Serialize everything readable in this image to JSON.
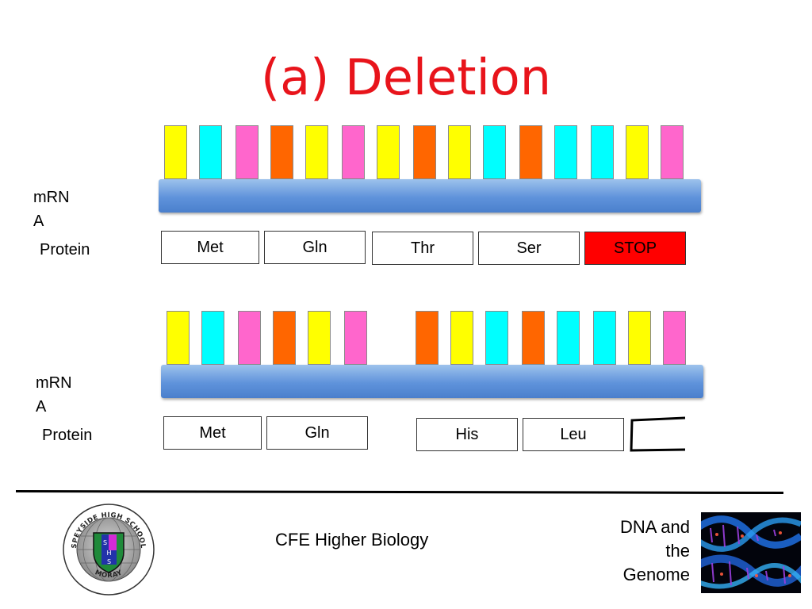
{
  "slide": {
    "title": "(a) Deletion"
  },
  "colors": {
    "yellow": "#ffff00",
    "cyan": "#00ffff",
    "pink": "#ff66cc",
    "orange": "#ff6600",
    "stop": "#ff0000",
    "title": "#e8141b"
  },
  "row1": {
    "mrna_label": "mRNA",
    "mrna_line1": "mRN",
    "mrna_line2": "A",
    "protein_label": "Protein",
    "bases": [
      "yellow",
      "cyan",
      "pink",
      "orange",
      "yellow",
      "pink",
      "yellow",
      "orange",
      "yellow",
      "cyan",
      "orange",
      "cyan",
      "cyan",
      "yellow",
      "pink"
    ],
    "amino_acids": [
      "Met",
      "Gln",
      "Thr",
      "Ser",
      "STOP"
    ]
  },
  "row2": {
    "mrna_line1": "mRN",
    "mrna_line2": "A",
    "protein_label": "Protein",
    "bases": [
      "yellow",
      "cyan",
      "pink",
      "orange",
      "yellow",
      "pink",
      "orange",
      "yellow",
      "cyan",
      "orange",
      "cyan",
      "cyan",
      "yellow",
      "pink"
    ],
    "amino_acids": [
      "Met",
      "Gln",
      "His",
      "Leu",
      ""
    ]
  },
  "footer": {
    "course": "CFE Higher Biology",
    "topic_line1": "DNA and",
    "topic_line2": "the",
    "topic_line3": "Genome",
    "logo_text_top": "SPEYSIDE HIGH SCHOOL",
    "logo_text_bottom": "MORAY",
    "logo_letters": [
      "S",
      "H",
      "S"
    ]
  }
}
